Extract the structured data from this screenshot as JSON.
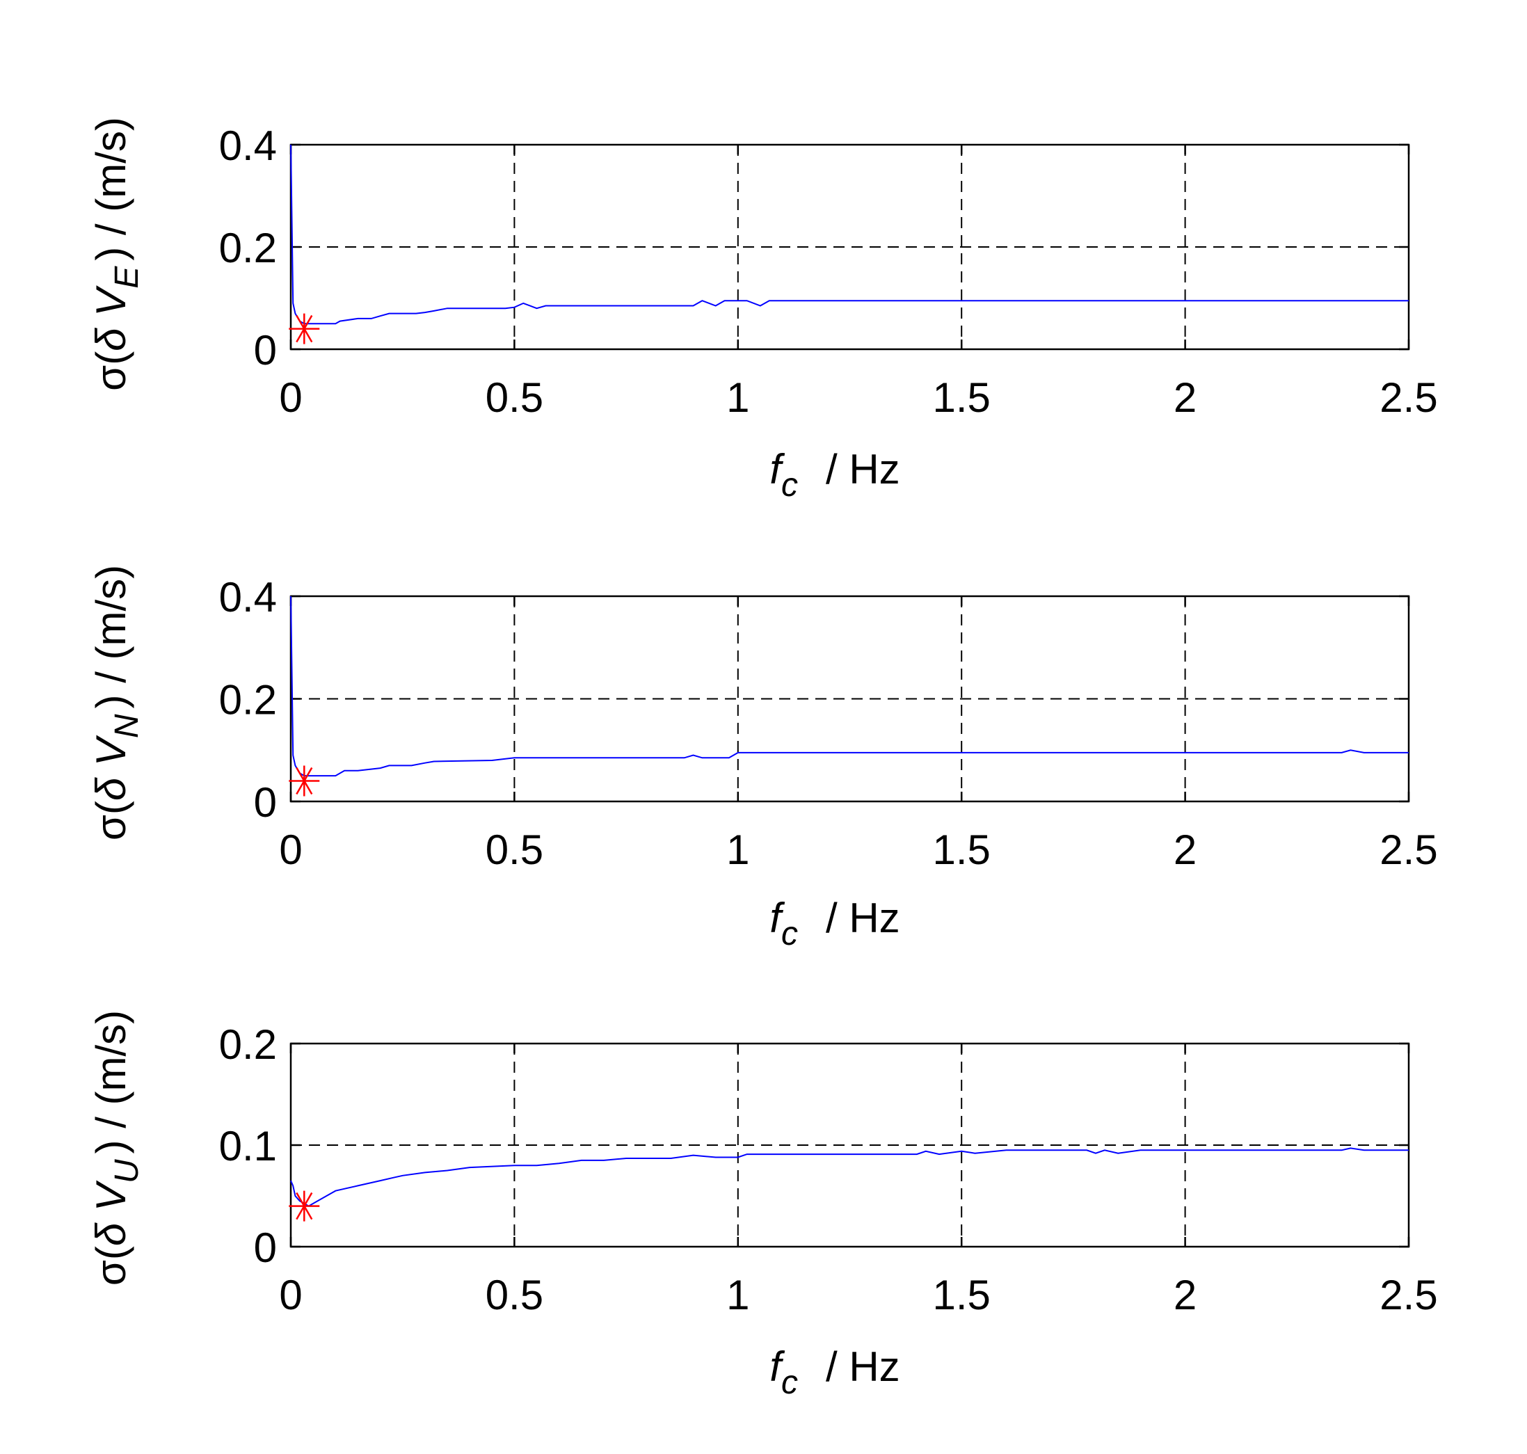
{
  "colors": {
    "line": "#0000ff",
    "marker": "#ff0000",
    "axes": "#000000",
    "grid": "#000000",
    "background": "#ffffff"
  },
  "chart_data": [
    {
      "type": "line",
      "title": "",
      "xlabel_italic": "f",
      "xlabel_subscript": "c",
      "xlabel_unit": "/ Hz",
      "ylabel_prefix": "σ(",
      "ylabel_italic": "δ V",
      "ylabel_subscript": "E",
      "ylabel_suffix": ") / (m/s)",
      "xlim": [
        0,
        2.5
      ],
      "ylim": [
        0,
        0.4
      ],
      "xticks": [
        0,
        0.5,
        1,
        1.5,
        2,
        2.5
      ],
      "xtick_labels": [
        "0",
        "0.5",
        "1",
        "1.5",
        "2",
        "2.5"
      ],
      "yticks": [
        0,
        0.2,
        0.4
      ],
      "ytick_labels": [
        "0",
        "0.2",
        "0.4"
      ],
      "grid": "dashed",
      "x": [
        0,
        0.005,
        0.01,
        0.02,
        0.03,
        0.05,
        0.1,
        0.11,
        0.15,
        0.18,
        0.2,
        0.22,
        0.28,
        0.3,
        0.32,
        0.35,
        0.45,
        0.48,
        0.5,
        0.52,
        0.55,
        0.57,
        0.6,
        0.9,
        0.92,
        0.95,
        0.97,
        1.0,
        1.02,
        1.05,
        1.07,
        1.1,
        1.5,
        2.0,
        2.5
      ],
      "values": [
        0.4,
        0.09,
        0.07,
        0.055,
        0.05,
        0.05,
        0.05,
        0.055,
        0.06,
        0.06,
        0.065,
        0.07,
        0.07,
        0.072,
        0.075,
        0.08,
        0.08,
        0.08,
        0.082,
        0.09,
        0.08,
        0.085,
        0.085,
        0.085,
        0.095,
        0.085,
        0.095,
        0.095,
        0.095,
        0.085,
        0.095,
        0.095,
        0.095,
        0.095,
        0.095
      ],
      "marker": {
        "x": 0.03,
        "y": 0.04,
        "symbol": "asterisk"
      }
    },
    {
      "type": "line",
      "title": "",
      "xlabel_italic": "f",
      "xlabel_subscript": "c",
      "xlabel_unit": "/ Hz",
      "ylabel_prefix": "σ(",
      "ylabel_italic": "δ V",
      "ylabel_subscript": "N",
      "ylabel_suffix": ") / (m/s)",
      "xlim": [
        0,
        2.5
      ],
      "ylim": [
        0,
        0.4
      ],
      "xticks": [
        0,
        0.5,
        1,
        1.5,
        2,
        2.5
      ],
      "xtick_labels": [
        "0",
        "0.5",
        "1",
        "1.5",
        "2",
        "2.5"
      ],
      "yticks": [
        0,
        0.2,
        0.4
      ],
      "ytick_labels": [
        "0",
        "0.2",
        "0.4"
      ],
      "grid": "dashed",
      "x": [
        0,
        0.005,
        0.01,
        0.02,
        0.03,
        0.05,
        0.1,
        0.12,
        0.15,
        0.2,
        0.22,
        0.27,
        0.3,
        0.32,
        0.45,
        0.5,
        0.52,
        0.88,
        0.9,
        0.92,
        0.95,
        0.98,
        1.0,
        1.05,
        2.35,
        2.37,
        2.4,
        2.5
      ],
      "values": [
        0.4,
        0.09,
        0.07,
        0.055,
        0.05,
        0.05,
        0.05,
        0.06,
        0.06,
        0.065,
        0.07,
        0.07,
        0.075,
        0.078,
        0.08,
        0.085,
        0.085,
        0.085,
        0.09,
        0.085,
        0.085,
        0.085,
        0.095,
        0.095,
        0.095,
        0.1,
        0.095,
        0.095
      ],
      "marker": {
        "x": 0.03,
        "y": 0.04,
        "symbol": "asterisk"
      }
    },
    {
      "type": "line",
      "title": "",
      "xlabel_italic": "f",
      "xlabel_subscript": "c",
      "xlabel_unit": "/ Hz",
      "ylabel_prefix": "σ(",
      "ylabel_italic": "δ V",
      "ylabel_subscript": "U",
      "ylabel_suffix": ") / (m/s)",
      "xlim": [
        0,
        2.5
      ],
      "ylim": [
        0,
        0.2
      ],
      "xticks": [
        0,
        0.5,
        1,
        1.5,
        2,
        2.5
      ],
      "xtick_labels": [
        "0",
        "0.5",
        "1",
        "1.5",
        "2",
        "2.5"
      ],
      "yticks": [
        0,
        0.1,
        0.2
      ],
      "ytick_labels": [
        "0",
        "0.1",
        "0.2"
      ],
      "grid": "dashed",
      "x": [
        0,
        0.005,
        0.01,
        0.02,
        0.04,
        0.06,
        0.08,
        0.1,
        0.15,
        0.2,
        0.23,
        0.25,
        0.3,
        0.35,
        0.4,
        0.5,
        0.55,
        0.6,
        0.65,
        0.7,
        0.75,
        0.85,
        0.9,
        0.95,
        1.0,
        1.02,
        1.4,
        1.42,
        1.45,
        1.5,
        1.53,
        1.6,
        1.78,
        1.8,
        1.82,
        1.85,
        1.9,
        2.0,
        2.35,
        2.37,
        2.4,
        2.5
      ],
      "values": [
        0.065,
        0.06,
        0.05,
        0.045,
        0.04,
        0.045,
        0.05,
        0.055,
        0.06,
        0.065,
        0.068,
        0.07,
        0.073,
        0.075,
        0.078,
        0.08,
        0.08,
        0.082,
        0.085,
        0.085,
        0.087,
        0.087,
        0.09,
        0.088,
        0.088,
        0.091,
        0.091,
        0.094,
        0.091,
        0.094,
        0.092,
        0.095,
        0.095,
        0.092,
        0.095,
        0.092,
        0.095,
        0.095,
        0.095,
        0.097,
        0.095,
        0.095
      ],
      "marker": {
        "x": 0.03,
        "y": 0.04,
        "symbol": "asterisk"
      }
    }
  ]
}
